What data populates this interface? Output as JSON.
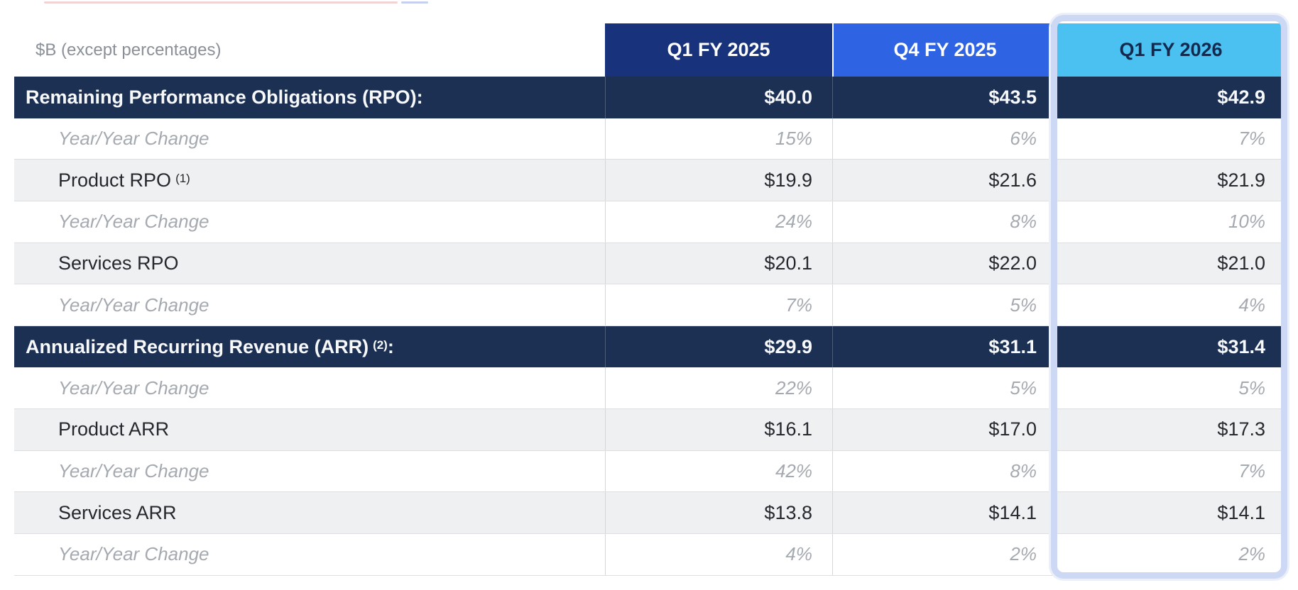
{
  "meta": {
    "units_label": "$B (except percentages)"
  },
  "columns": [
    "Q1 FY 2025",
    "Q4 FY 2025",
    "Q1 FY 2026"
  ],
  "highlight": {
    "column": "Q1 FY 2026",
    "border_color": "#cdd9f4"
  },
  "colors": {
    "q1_header_bg": "#19327c",
    "q4_header_bg": "#2e63e4",
    "q1fy26_header_bg": "#4ac1f0",
    "section_row_bg": "#1c3054",
    "sub_row_bg": "#eef0f2",
    "change_text": "#a5a9b0"
  },
  "rows": [
    {
      "type": "section",
      "label": "Remaining Performance Obligations (RPO):",
      "superscript": "",
      "suffix": "",
      "values": [
        "$40.0",
        "$43.5",
        "$42.9"
      ]
    },
    {
      "type": "change",
      "label": "Year/Year Change",
      "superscript": "",
      "suffix": "",
      "values": [
        "15%",
        "6%",
        "7%"
      ]
    },
    {
      "type": "sub",
      "label": "Product RPO",
      "superscript": "(1)",
      "suffix": "",
      "values": [
        "$19.9",
        "$21.6",
        "$21.9"
      ]
    },
    {
      "type": "change",
      "label": "Year/Year Change",
      "superscript": "",
      "suffix": "",
      "values": [
        "24%",
        "8%",
        "10%"
      ]
    },
    {
      "type": "sub",
      "label": "Services RPO",
      "superscript": "",
      "suffix": "",
      "values": [
        "$20.1",
        "$22.0",
        "$21.0"
      ]
    },
    {
      "type": "change",
      "label": "Year/Year Change",
      "superscript": "",
      "suffix": "",
      "values": [
        "7%",
        "5%",
        "4%"
      ]
    },
    {
      "type": "section",
      "label": "Annualized Recurring Revenue (ARR)",
      "superscript": "(2)",
      "suffix": ":",
      "values": [
        "$29.9",
        "$31.1",
        "$31.4"
      ]
    },
    {
      "type": "change",
      "label": "Year/Year Change",
      "superscript": "",
      "suffix": "",
      "values": [
        "22%",
        "5%",
        "5%"
      ]
    },
    {
      "type": "sub",
      "label": "Product ARR",
      "superscript": "",
      "suffix": "",
      "values": [
        "$16.1",
        "$17.0",
        "$17.3"
      ]
    },
    {
      "type": "change",
      "label": "Year/Year Change",
      "superscript": "",
      "suffix": "",
      "values": [
        "42%",
        "8%",
        "7%"
      ]
    },
    {
      "type": "sub",
      "label": "Services ARR",
      "superscript": "",
      "suffix": "",
      "values": [
        "$13.8",
        "$14.1",
        "$14.1"
      ]
    },
    {
      "type": "change",
      "label": "Year/Year Change",
      "superscript": "",
      "suffix": "",
      "values": [
        "4%",
        "2%",
        "2%"
      ]
    }
  ],
  "chart_data": {
    "type": "table",
    "title": "$B (except percentages)",
    "columns": [
      "Q1 FY 2025",
      "Q4 FY 2025",
      "Q1 FY 2026"
    ],
    "highlighted_column": "Q1 FY 2026",
    "rows": [
      {
        "label": "Remaining Performance Obligations (RPO)",
        "unit": "$B",
        "values": [
          40.0,
          43.5,
          42.9
        ]
      },
      {
        "label": "RPO Year/Year Change",
        "unit": "%",
        "values": [
          15,
          6,
          7
        ]
      },
      {
        "label": "Product RPO",
        "unit": "$B",
        "values": [
          19.9,
          21.6,
          21.9
        ]
      },
      {
        "label": "Product RPO Year/Year Change",
        "unit": "%",
        "values": [
          24,
          8,
          10
        ]
      },
      {
        "label": "Services RPO",
        "unit": "$B",
        "values": [
          20.1,
          22.0,
          21.0
        ]
      },
      {
        "label": "Services RPO Year/Year Change",
        "unit": "%",
        "values": [
          7,
          5,
          4
        ]
      },
      {
        "label": "Annualized Recurring Revenue (ARR)",
        "unit": "$B",
        "values": [
          29.9,
          31.1,
          31.4
        ]
      },
      {
        "label": "ARR Year/Year Change",
        "unit": "%",
        "values": [
          22,
          5,
          5
        ]
      },
      {
        "label": "Product ARR",
        "unit": "$B",
        "values": [
          16.1,
          17.0,
          17.3
        ]
      },
      {
        "label": "Product ARR Year/Year Change",
        "unit": "%",
        "values": [
          42,
          8,
          7
        ]
      },
      {
        "label": "Services ARR",
        "unit": "$B",
        "values": [
          13.8,
          14.1,
          14.1
        ]
      },
      {
        "label": "Services ARR Year/Year Change",
        "unit": "%",
        "values": [
          4,
          2,
          2
        ]
      }
    ]
  }
}
